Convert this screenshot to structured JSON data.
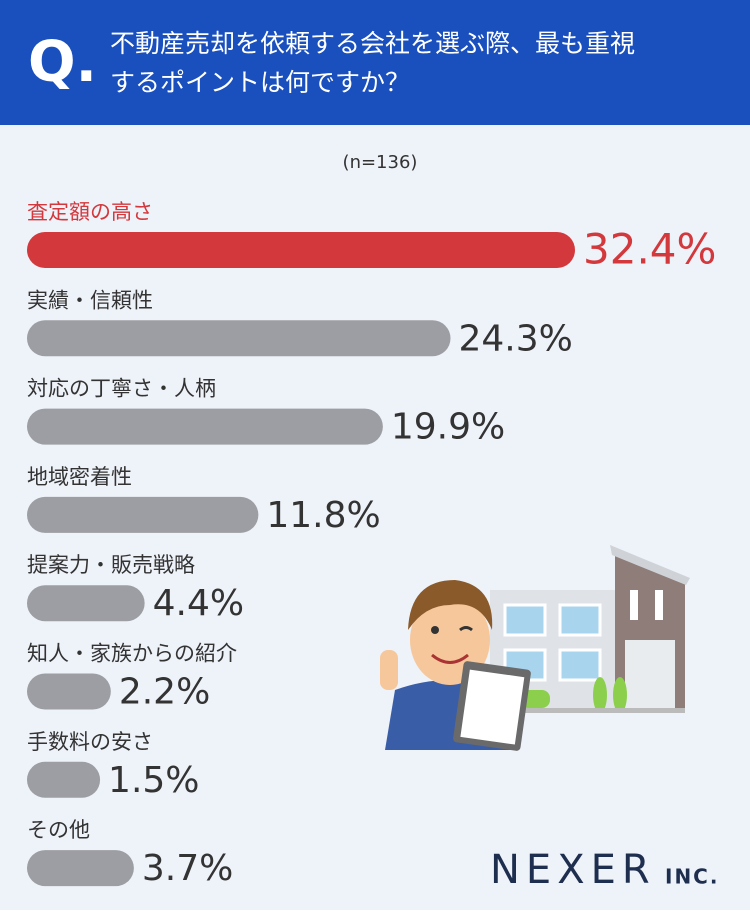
{
  "chart_data": {
    "type": "bar",
    "question_mark": "Q.",
    "title_lines": [
      "不動産売却を依頼する会社を選ぶ際、最も重視",
      "するポイントは何ですか？"
    ],
    "note": "(n=136)",
    "categories": [
      "査定額の高さ",
      "実績・信頼性",
      "対応の丁寧さ・人柄",
      "地域密着性",
      "提案力・販売戦略",
      "知人・家族からの紹介",
      "手数料の安さ",
      "その他"
    ],
    "values": [
      32.4,
      24.3,
      19.9,
      11.8,
      4.4,
      2.2,
      1.5,
      3.7
    ],
    "value_labels": [
      "32.4%",
      "24.3%",
      "19.9%",
      "11.8%",
      "4.4%",
      "2.2%",
      "1.5%",
      "3.7%"
    ],
    "colors": [
      "#d3383c",
      "#9d9ea3",
      "#9d9ea3",
      "#9d9ea3",
      "#9d9ea3",
      "#9d9ea3",
      "#9d9ea3",
      "#9d9ea3"
    ],
    "logo": "NEXER",
    "logo_suffix": "INC."
  }
}
